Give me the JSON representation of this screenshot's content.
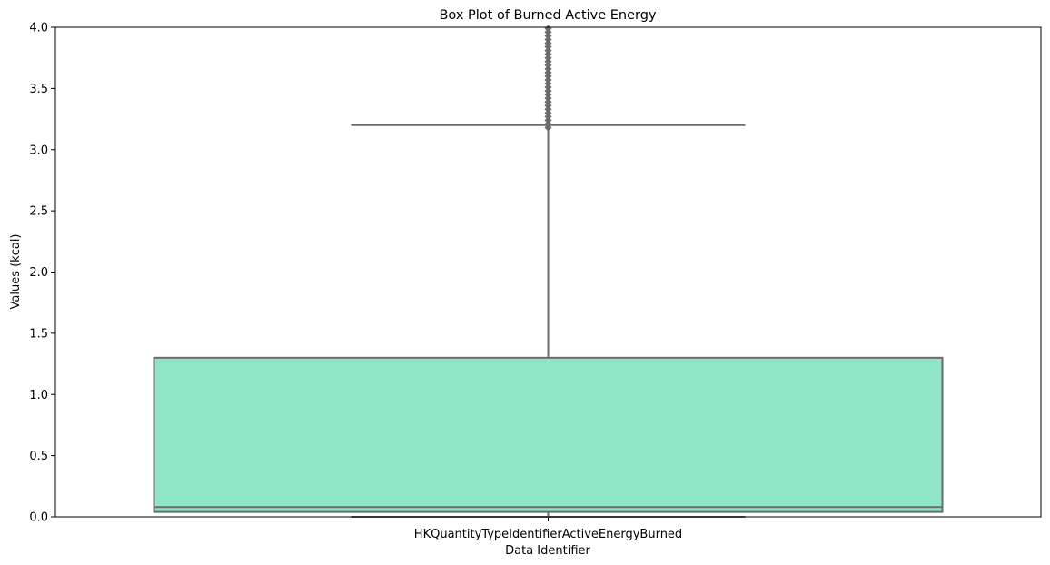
{
  "chart_data": {
    "type": "box",
    "title": "Box Plot of Burned Active Energy",
    "xlabel": "Data Identifier",
    "ylabel": "Values (kcal)",
    "categories": [
      "HKQuantityTypeIdentifierActiveEnergyBurned"
    ],
    "ylim": [
      0,
      4
    ],
    "yticks": [
      0,
      0.5,
      1,
      1.5,
      2,
      2.5,
      3,
      3.5,
      4
    ],
    "ytick_labels": [
      "0.0",
      "0.5",
      "1.0",
      "1.5",
      "2.0",
      "2.5",
      "3.0",
      "3.5",
      "4.0"
    ],
    "grid": false,
    "boxes": [
      {
        "category": "HKQuantityTypeIdentifierActiveEnergyBurned",
        "whisker_low": 0.0,
        "q1": 0.04,
        "median": 0.08,
        "q3": 1.3,
        "whisker_high": 3.2,
        "outliers": [
          3.18,
          3.21,
          3.24,
          3.27,
          3.3,
          3.33,
          3.36,
          3.39,
          3.42,
          3.45,
          3.48,
          3.51,
          3.54,
          3.57,
          3.6,
          3.63,
          3.66,
          3.69,
          3.72,
          3.75,
          3.78,
          3.81,
          3.84,
          3.87,
          3.9,
          3.93,
          3.96,
          3.99
        ]
      }
    ],
    "colors": {
      "box_fill": "#91e5c7",
      "line": "#6b6b6b",
      "outlier": "#6b6b6b"
    }
  }
}
